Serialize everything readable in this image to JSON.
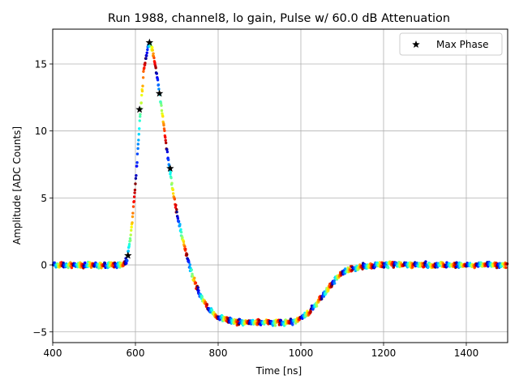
{
  "chart_data": {
    "type": "scatter",
    "title": "Run 1988, channel8, lo gain, Pulse w/ 60.0 dB Attenuation",
    "xlabel": "Time [ns]",
    "ylabel": "Amplitude [ADC Counts]",
    "xlim": [
      400,
      1500
    ],
    "ylim": [
      -5.8,
      17.6
    ],
    "xticks": [
      400,
      600,
      800,
      1000,
      1200,
      1400
    ],
    "yticks": [
      -5,
      0,
      5,
      10,
      15
    ],
    "xtick_labels": [
      "400",
      "600",
      "800",
      "1000",
      "1200",
      "1400"
    ],
    "ytick_labels": [
      "−5",
      "0",
      "5",
      "10",
      "15"
    ],
    "grid": true,
    "legend": {
      "position": "top-right",
      "entries": [
        "Max Phase"
      ]
    },
    "colormap": "jet",
    "pulse_waveform": {
      "t": [
        400,
        570,
        580,
        590,
        600,
        610,
        620,
        630,
        635,
        640,
        650,
        660,
        670,
        680,
        690,
        700,
        710,
        720,
        730,
        740,
        750,
        760,
        780,
        800,
        820,
        840,
        860,
        880,
        900,
        920,
        940,
        960,
        980,
        1000,
        1020,
        1040,
        1060,
        1080,
        1100,
        1120,
        1140,
        1160,
        1200,
        1300,
        1400,
        1500
      ],
      "amplitude": [
        0.0,
        0.0,
        0.4,
        2.5,
        6.0,
        10.5,
        14.5,
        16.3,
        16.5,
        16.2,
        14.6,
        12.4,
        10.0,
        7.7,
        5.7,
        3.9,
        2.5,
        1.2,
        0.0,
        -1.0,
        -1.8,
        -2.5,
        -3.4,
        -3.9,
        -4.1,
        -4.25,
        -4.3,
        -4.3,
        -4.3,
        -4.3,
        -4.3,
        -4.3,
        -4.25,
        -4.0,
        -3.5,
        -2.8,
        -2.0,
        -1.2,
        -0.6,
        -0.3,
        -0.15,
        -0.05,
        0.0,
        0.0,
        0.0,
        0.0
      ]
    },
    "phase_color_sequence": "blue-cyan-green-yellow-red, repeating every 25 ns",
    "series": [
      {
        "name": "Max Phase",
        "marker": "star",
        "color": "#000000",
        "x": [
          582,
          610,
          634,
          658,
          684
        ],
        "y": [
          0.7,
          11.6,
          16.6,
          12.8,
          7.2
        ]
      }
    ]
  }
}
